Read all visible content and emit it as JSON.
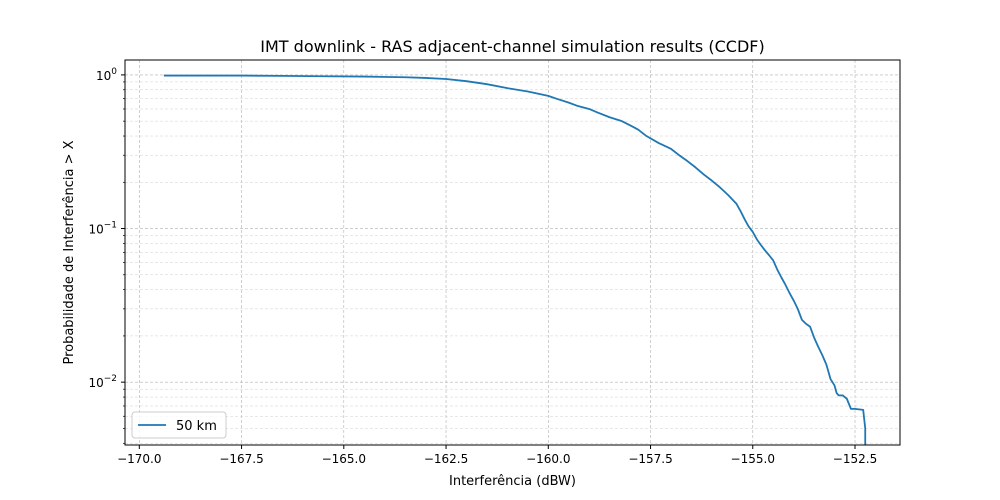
{
  "chart_data": {
    "type": "line",
    "title": "IMT downlink - RAS adjacent-channel simulation results (CCDF)",
    "xlabel": "Interferência (dBW)",
    "ylabel": "Probabilidade de Interferência > X",
    "xlim": [
      -170.35,
      -151.4
    ],
    "ylim": [
      0.0039,
      1.25
    ],
    "yscale": "log",
    "grid": true,
    "legend": {
      "placement": "lower-left"
    },
    "x_ticks": [
      {
        "value": -170.0,
        "label": "−170.0"
      },
      {
        "value": -167.5,
        "label": "−167.5"
      },
      {
        "value": -165.0,
        "label": "−165.0"
      },
      {
        "value": -162.5,
        "label": "−162.5"
      },
      {
        "value": -160.0,
        "label": "−160.0"
      },
      {
        "value": -157.5,
        "label": "−157.5"
      },
      {
        "value": -155.0,
        "label": "−155.0"
      },
      {
        "value": -152.5,
        "label": "−152.5"
      }
    ],
    "y_ticks": [
      {
        "value": 1,
        "base": "10",
        "exp": "0"
      },
      {
        "value": 0.1,
        "base": "10",
        "exp": "−1"
      },
      {
        "value": 0.01,
        "base": "10",
        "exp": "−2"
      }
    ],
    "series": [
      {
        "name": "50 km",
        "color": "#1f77b4",
        "x": [
          -169.4,
          -168.5,
          -167.5,
          -166.5,
          -165.5,
          -164.5,
          -163.5,
          -163.0,
          -162.5,
          -162.0,
          -161.5,
          -161.0,
          -160.5,
          -160.0,
          -159.8,
          -159.5,
          -159.3,
          -159.0,
          -158.8,
          -158.5,
          -158.2,
          -158.0,
          -157.8,
          -157.6,
          -157.3,
          -157.0,
          -156.8,
          -156.6,
          -156.4,
          -156.2,
          -156.0,
          -155.8,
          -155.6,
          -155.4,
          -155.3,
          -155.2,
          -155.1,
          -155.0,
          -154.9,
          -154.8,
          -154.7,
          -154.6,
          -154.5,
          -154.4,
          -154.3,
          -154.2,
          -154.1,
          -154.0,
          -153.9,
          -153.8,
          -153.7,
          -153.6,
          -153.5,
          -153.4,
          -153.3,
          -153.2,
          -153.1,
          -153.0,
          -152.95,
          -152.9,
          -152.8,
          -152.7,
          -152.6,
          -152.5,
          -152.3,
          -152.25,
          -152.25
        ],
        "y": [
          0.99,
          0.99,
          0.99,
          0.985,
          0.98,
          0.975,
          0.965,
          0.955,
          0.94,
          0.91,
          0.87,
          0.82,
          0.78,
          0.73,
          0.7,
          0.66,
          0.63,
          0.6,
          0.57,
          0.53,
          0.5,
          0.47,
          0.44,
          0.4,
          0.36,
          0.33,
          0.3,
          0.275,
          0.25,
          0.225,
          0.205,
          0.185,
          0.165,
          0.145,
          0.13,
          0.115,
          0.103,
          0.095,
          0.085,
          0.078,
          0.072,
          0.067,
          0.062,
          0.054,
          0.048,
          0.043,
          0.038,
          0.034,
          0.03,
          0.0255,
          0.024,
          0.023,
          0.0195,
          0.017,
          0.015,
          0.013,
          0.0105,
          0.0095,
          0.0085,
          0.0082,
          0.0082,
          0.0078,
          0.0067,
          0.0067,
          0.0066,
          0.005,
          0.0039
        ]
      }
    ]
  }
}
